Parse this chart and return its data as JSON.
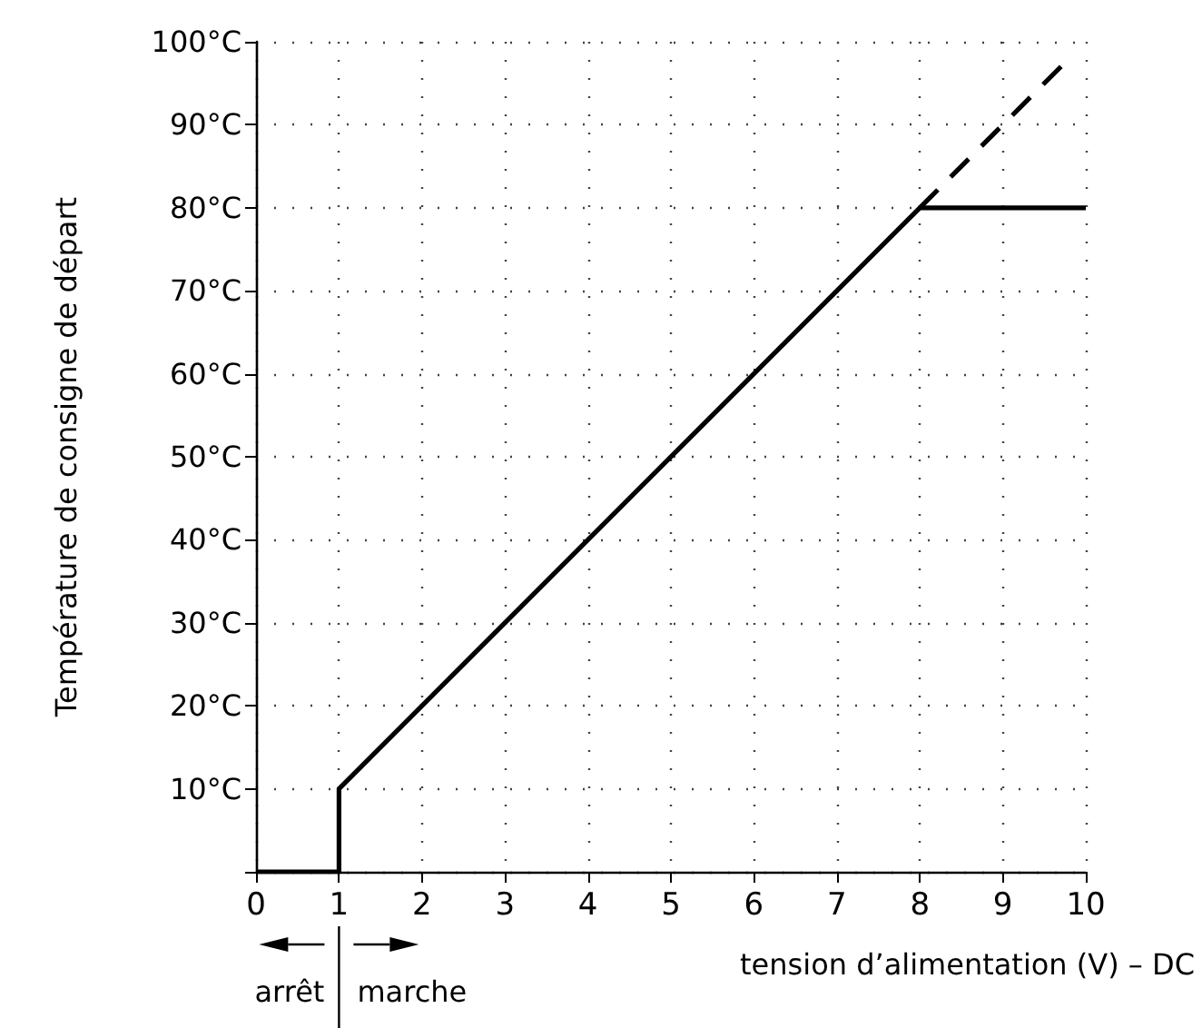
{
  "chart_data": {
    "type": "line",
    "xlabel": "tension d’alimentation (V) – DC",
    "ylabel": "Température de consigne de départ",
    "xlim": [
      0,
      10
    ],
    "xticks": [
      0,
      1,
      2,
      3,
      4,
      5,
      6,
      7,
      8,
      9,
      10
    ],
    "ylim": [
      0,
      100
    ],
    "yticks": [
      {
        "value": 0,
        "label": null
      },
      {
        "value": 10,
        "label": "10°C"
      },
      {
        "value": 20,
        "label": "20°C"
      },
      {
        "value": 30,
        "label": "30°C"
      },
      {
        "value": 40,
        "label": "40°C"
      },
      {
        "value": 50,
        "label": "50°C"
      },
      {
        "value": 60,
        "label": "60°C"
      },
      {
        "value": 70,
        "label": "70°C"
      },
      {
        "value": 80,
        "label": "80°C"
      },
      {
        "value": 90,
        "label": "90°C"
      },
      {
        "value": 100,
        "label": "100°C"
      }
    ],
    "series": [
      {
        "color": "#000000",
        "line_style": "solid",
        "x": [
          0,
          1,
          1,
          8,
          10
        ],
        "values": [
          0,
          0,
          10,
          80,
          80
        ]
      },
      {
        "color": "#000000",
        "line_style": "dashed",
        "x": [
          8,
          9.75
        ],
        "values": [
          80,
          97.5
        ]
      }
    ],
    "annotations": [
      "arrêt",
      "marche"
    ],
    "marker": "none",
    "grid": true
  }
}
